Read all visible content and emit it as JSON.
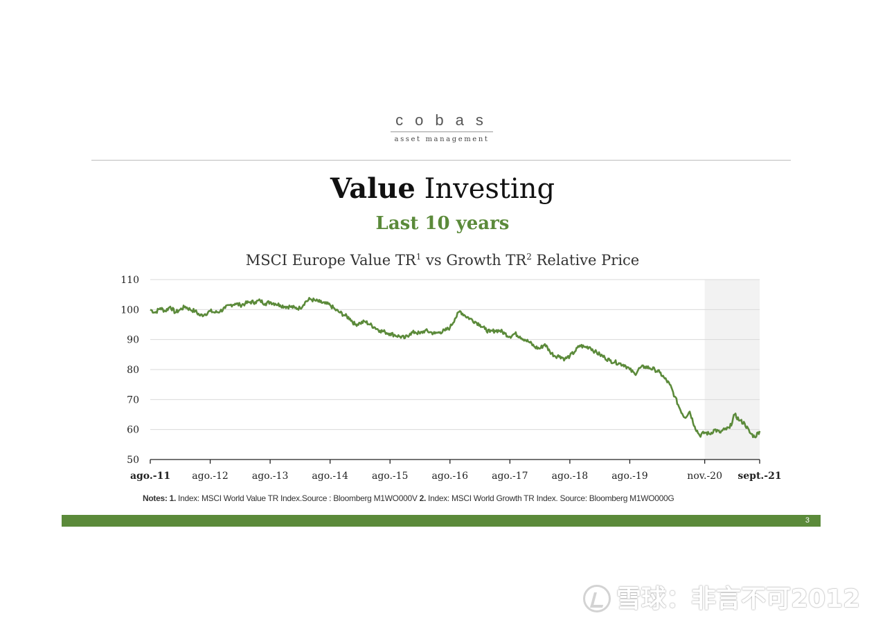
{
  "logo": {
    "word": "cobas",
    "sub": "asset management"
  },
  "title": {
    "bold": "Value",
    "light": "Investing"
  },
  "subtitle": "Last 10 years",
  "chart_title": {
    "part1": "MSCI Europe Value TR",
    "sup1": "1",
    "part2": " vs Growth TR",
    "sup2": "2",
    "part3": " Relative Price"
  },
  "notes": {
    "label": "Notes:",
    "n1": "1.",
    "t1": " Index: MSCI World Value TR Index.Source : Bloomberg M1WO000V ",
    "n2": "2.",
    "t2": " Index: MSCI World Growth TR Index. Source: Bloomberg M1WO000G"
  },
  "page_number": "3",
  "watermark": "雪球：非言不可2012",
  "colors": {
    "accent": "#5b8a3a",
    "line": "#5b8a3a",
    "shade": "#f2f2f2",
    "grid": "#d9d9d9"
  },
  "chart_data": {
    "type": "line",
    "title": "MSCI Europe Value TR1 vs Growth TR2 Relative Price",
    "ylim": [
      50,
      110
    ],
    "yticks": [
      50,
      60,
      70,
      80,
      90,
      100,
      110
    ],
    "grid": true,
    "x_ticks": [
      {
        "label": "ago.-11",
        "month": 0,
        "bold": true
      },
      {
        "label": "ago.-12",
        "month": 12
      },
      {
        "label": "ago.-13",
        "month": 24
      },
      {
        "label": "ago.-14",
        "month": 36
      },
      {
        "label": "ago.-15",
        "month": 48
      },
      {
        "label": "ago.-16",
        "month": 60
      },
      {
        "label": "ago.-17",
        "month": 72
      },
      {
        "label": "ago.-18",
        "month": 84
      },
      {
        "label": "ago.-19",
        "month": 96
      },
      {
        "label": "nov.-20",
        "month": 111
      },
      {
        "label": "sept.-21",
        "month": 122,
        "bold": true
      }
    ],
    "shaded_range": [
      "nov.-20",
      "sept.-21"
    ],
    "series": [
      {
        "values": [
          [
            0,
            100
          ],
          [
            1,
            99
          ],
          [
            2,
            100.5
          ],
          [
            3,
            99.5
          ],
          [
            4,
            101
          ],
          [
            5,
            99
          ],
          [
            6,
            100
          ],
          [
            7,
            101
          ],
          [
            8,
            100
          ],
          [
            9,
            99.5
          ],
          [
            10,
            98
          ],
          [
            11,
            98.5
          ],
          [
            12,
            99.5
          ],
          [
            13,
            99
          ],
          [
            14,
            99.5
          ],
          [
            15,
            100.5
          ],
          [
            16,
            101.5
          ],
          [
            17,
            102
          ],
          [
            18,
            101.5
          ],
          [
            19,
            102
          ],
          [
            20,
            102.5
          ],
          [
            21,
            102.5
          ],
          [
            22,
            103
          ],
          [
            23,
            102
          ],
          [
            24,
            102.5
          ],
          [
            25,
            102
          ],
          [
            26,
            101.5
          ],
          [
            27,
            101
          ],
          [
            28,
            101
          ],
          [
            29,
            100.5
          ],
          [
            30,
            100.5
          ],
          [
            31,
            102.5
          ],
          [
            32,
            103.5
          ],
          [
            33,
            103
          ],
          [
            34,
            102.5
          ],
          [
            35,
            102
          ],
          [
            36,
            101.5
          ],
          [
            37,
            100
          ],
          [
            38,
            99
          ],
          [
            39,
            98
          ],
          [
            40,
            97
          ],
          [
            41,
            95
          ],
          [
            42,
            95.5
          ],
          [
            43,
            96
          ],
          [
            44,
            95
          ],
          [
            45,
            94
          ],
          [
            46,
            93
          ],
          [
            47,
            92.5
          ],
          [
            48,
            92
          ],
          [
            49,
            91.5
          ],
          [
            50,
            91
          ],
          [
            51,
            90.5
          ],
          [
            52,
            92
          ],
          [
            53,
            92.5
          ],
          [
            54,
            92
          ],
          [
            55,
            93
          ],
          [
            56,
            92.5
          ],
          [
            57,
            92
          ],
          [
            58,
            92.5
          ],
          [
            59,
            93
          ],
          [
            60,
            94
          ],
          [
            61,
            97
          ],
          [
            62,
            99.5
          ],
          [
            63,
            98
          ],
          [
            64,
            97
          ],
          [
            65,
            96
          ],
          [
            66,
            95
          ],
          [
            67,
            93.5
          ],
          [
            68,
            92.5
          ],
          [
            69,
            93
          ],
          [
            70,
            93
          ],
          [
            71,
            92
          ],
          [
            72,
            91
          ],
          [
            73,
            92
          ],
          [
            74,
            91
          ],
          [
            75,
            90
          ],
          [
            76,
            89
          ],
          [
            77,
            87.5
          ],
          [
            78,
            87
          ],
          [
            79,
            88.5
          ],
          [
            80,
            86
          ],
          [
            81,
            84.5
          ],
          [
            82,
            84.5
          ],
          [
            83,
            83.5
          ],
          [
            84,
            84.5
          ],
          [
            85,
            86
          ],
          [
            86,
            88
          ],
          [
            87,
            87.5
          ],
          [
            88,
            87.5
          ],
          [
            89,
            86
          ],
          [
            90,
            85
          ],
          [
            91,
            84
          ],
          [
            92,
            83
          ],
          [
            93,
            82.5
          ],
          [
            94,
            82
          ],
          [
            95,
            81.5
          ],
          [
            96,
            80
          ],
          [
            97,
            78.5
          ],
          [
            98,
            80.5
          ],
          [
            99,
            81
          ],
          [
            100,
            80.5
          ],
          [
            101,
            80
          ],
          [
            102,
            79
          ],
          [
            103,
            77
          ],
          [
            104,
            75
          ],
          [
            105,
            71
          ],
          [
            106,
            67
          ],
          [
            107,
            64
          ],
          [
            108,
            66
          ],
          [
            109,
            61
          ],
          [
            110,
            58
          ],
          [
            111,
            59
          ],
          [
            112,
            58.5
          ],
          [
            113,
            60
          ],
          [
            114,
            59
          ],
          [
            115,
            60
          ],
          [
            116,
            60.5
          ],
          [
            117,
            65
          ],
          [
            118,
            63
          ],
          [
            119,
            62
          ],
          [
            120,
            59
          ],
          [
            121,
            57.5
          ],
          [
            122,
            59.5
          ]
        ]
      }
    ]
  }
}
